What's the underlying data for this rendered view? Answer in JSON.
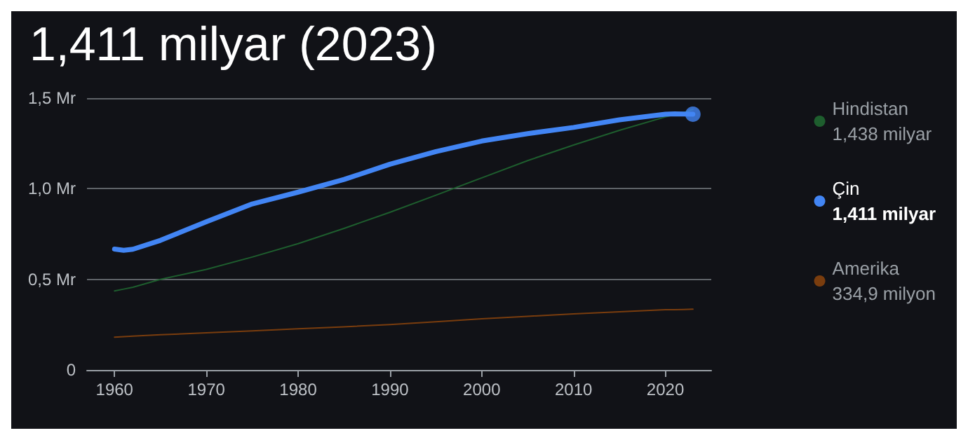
{
  "chart_data": {
    "type": "line",
    "title": "1,411 milyar (2023)",
    "x": [
      1960,
      1961,
      1962,
      1965,
      1970,
      1975,
      1980,
      1985,
      1990,
      1995,
      2000,
      2005,
      2010,
      2015,
      2020,
      2021,
      2022,
      2023
    ],
    "series": [
      {
        "name": "Hindistan",
        "color": "#1e5e2e",
        "values": [
          0.436,
          0.446,
          0.456,
          0.5,
          0.555,
          0.623,
          0.697,
          0.781,
          0.87,
          0.964,
          1.06,
          1.155,
          1.241,
          1.322,
          1.396,
          1.408,
          1.42,
          1.438
        ]
      },
      {
        "name": "Çin",
        "color": "#4285f4",
        "values": [
          0.667,
          0.66,
          0.666,
          0.715,
          0.818,
          0.916,
          0.981,
          1.051,
          1.135,
          1.205,
          1.263,
          1.304,
          1.338,
          1.38,
          1.411,
          1.413,
          1.412,
          1.411
        ]
      },
      {
        "name": "Amerika",
        "color": "#7a3d0e",
        "values": [
          0.181,
          0.184,
          0.187,
          0.194,
          0.205,
          0.216,
          0.227,
          0.238,
          0.25,
          0.266,
          0.282,
          0.296,
          0.309,
          0.321,
          0.332,
          0.332,
          0.333,
          0.335
        ]
      },
      {
        "type": "scatter",
        "color": "#4285f4",
        "marker": "circle",
        "x": [
          2023
        ],
        "values": [
          1.411
        ]
      }
    ],
    "annotations": [
      "1,438 milyar",
      "1,411 milyar",
      "334,9 milyon"
    ],
    "xlim": [
      1957,
      2025
    ],
    "xticks": [
      1960,
      1970,
      1980,
      1990,
      2000,
      2010,
      2020
    ],
    "ylim": [
      0,
      1.5
    ],
    "yticks": [
      0,
      {
        "value": 0.5,
        "label": "0,5 Mr"
      },
      {
        "value": 1,
        "label": "1,0 Mr"
      },
      {
        "value": 1.5,
        "label": "1,5 Mr"
      }
    ],
    "grid": "y",
    "legend": "right"
  }
}
